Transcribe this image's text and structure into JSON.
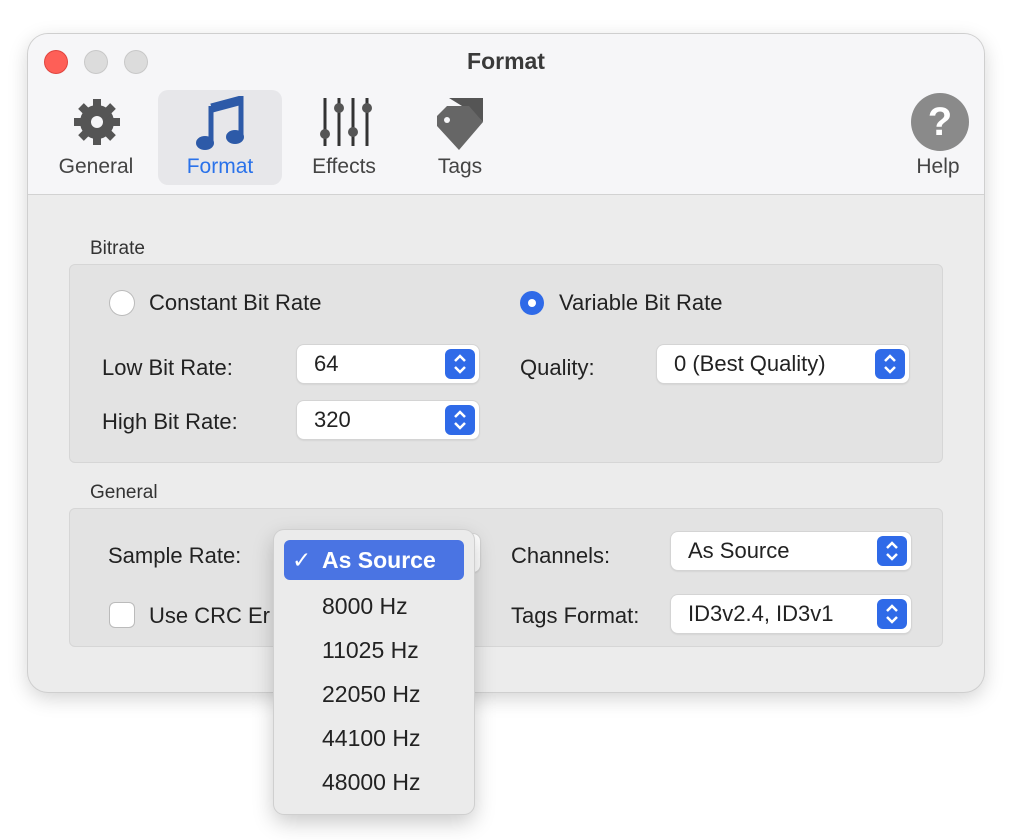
{
  "window": {
    "title": "Format"
  },
  "toolbar": {
    "items": [
      {
        "label": "General",
        "icon": "gear-icon"
      },
      {
        "label": "Format",
        "icon": "music-note-icon",
        "selected": true
      },
      {
        "label": "Effects",
        "icon": "sliders-icon"
      },
      {
        "label": "Tags",
        "icon": "tag-icon"
      }
    ],
    "help": {
      "label": "Help",
      "icon": "question-icon"
    }
  },
  "bitrate": {
    "title": "Bitrate",
    "cbr_label": "Constant Bit Rate",
    "cbr_selected": false,
    "vbr_label": "Variable Bit Rate",
    "vbr_selected": true,
    "low_label": "Low Bit Rate:",
    "low_value": "64",
    "high_label": "High Bit Rate:",
    "high_value": "320",
    "quality_label": "Quality:",
    "quality_value": "0 (Best Quality)"
  },
  "general": {
    "title": "General",
    "sample_label": "Sample Rate:",
    "crc_label": "Use CRC Er",
    "crc_checked": false,
    "channels_label": "Channels:",
    "channels_value": "As Source",
    "tags_label": "Tags Format:",
    "tags_value": "ID3v2.4, ID3v1"
  },
  "sample_menu": {
    "check": "✓",
    "options": [
      "As Source",
      "8000 Hz",
      "11025 Hz",
      "22050 Hz",
      "44100 Hz",
      "48000 Hz"
    ],
    "selected": "As Source"
  },
  "colors": {
    "accent": "#2f6ae8",
    "menu_highlight": "#4a74e3",
    "close": "#fe5f57"
  }
}
